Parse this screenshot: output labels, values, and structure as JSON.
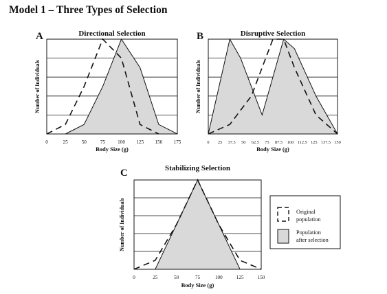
{
  "model_title": "Model 1 – Three Types of Selection",
  "legend": {
    "original": "Original population",
    "after": "Population after selection",
    "original_lines": [
      "Original",
      "population"
    ],
    "after_lines": [
      "Population",
      "after selection"
    ]
  },
  "chart_data": [
    {
      "type": "area",
      "panel_letter": "A",
      "title": "Directional Selection",
      "xlabel": "Body Size (g)",
      "ylabel": "Number of Individuals",
      "x_ticks": [
        "0",
        "25",
        "50",
        "75",
        "100",
        "125",
        "150",
        "175"
      ],
      "xlim": [
        0,
        175
      ],
      "ylim": [
        0,
        5
      ],
      "grid": true,
      "series": [
        {
          "role": "original",
          "style": "dashed",
          "x": [
            0,
            25,
            50,
            75,
            100,
            125,
            150
          ],
          "y": [
            0,
            0.5,
            2.5,
            5,
            4,
            0.5,
            0
          ]
        },
        {
          "role": "after",
          "style": "filled",
          "x": [
            25,
            50,
            75,
            100,
            125,
            150,
            175
          ],
          "y": [
            0,
            0.5,
            2.5,
            5,
            3.5,
            0.5,
            0
          ]
        }
      ]
    },
    {
      "type": "area",
      "panel_letter": "B",
      "title": "Disruptive Selection",
      "xlabel": "Body Size (g)",
      "ylabel": "Number of Individuals",
      "x_ticks": [
        "0",
        "25",
        "37.5",
        "50",
        "62.5",
        "75",
        "87.5",
        "100",
        "112.5",
        "125",
        "137.5",
        "150"
      ],
      "xlim": [
        0,
        150
      ],
      "ylim": [
        0,
        5
      ],
      "grid": true,
      "series": [
        {
          "role": "original",
          "style": "dashed",
          "x": [
            0,
            25,
            50,
            75,
            87.5,
            100,
            125,
            150
          ],
          "y": [
            0,
            0.5,
            2,
            5,
            5,
            3.5,
            1,
            0
          ]
        },
        {
          "role": "after",
          "style": "filled",
          "x": [
            0,
            25,
            37.5,
            62.5,
            87.5,
            100,
            125,
            150
          ],
          "y": [
            0,
            5,
            4,
            1,
            5,
            4.5,
            2,
            0
          ]
        }
      ]
    },
    {
      "type": "area",
      "panel_letter": "C",
      "title": "Stabilizing Selection",
      "xlabel": "Body Size (g)",
      "ylabel": "Number of Individuals",
      "x_ticks": [
        "0",
        "25",
        "50",
        "75",
        "100",
        "125",
        "150"
      ],
      "xlim": [
        0,
        150
      ],
      "ylim": [
        0,
        5
      ],
      "grid": true,
      "series": [
        {
          "role": "original",
          "style": "dashed",
          "x": [
            0,
            25,
            50,
            75,
            100,
            125,
            150
          ],
          "y": [
            0,
            0.5,
            2.5,
            5,
            2.5,
            0.5,
            0
          ]
        },
        {
          "role": "after",
          "style": "filled",
          "x": [
            25,
            75,
            125
          ],
          "y": [
            0,
            5,
            0
          ]
        }
      ]
    }
  ]
}
